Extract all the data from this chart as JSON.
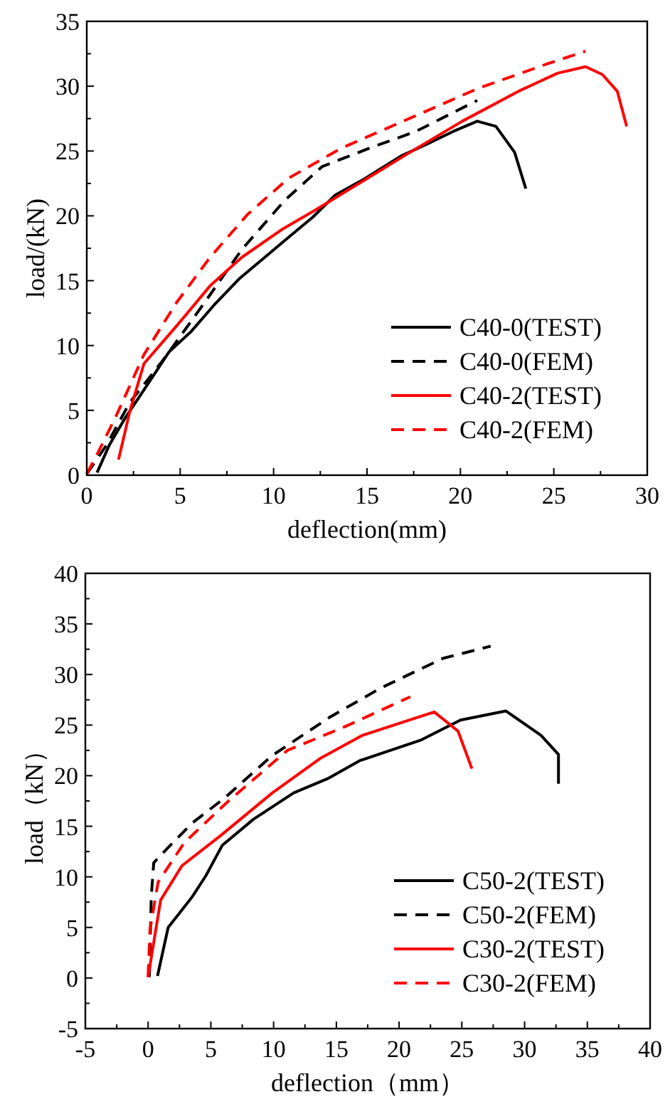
{
  "chart_data": [
    {
      "type": "line",
      "xlabel": "deflection(mm)",
      "ylabel": "load/(kN)",
      "xlim": [
        0,
        30
      ],
      "ylim": [
        0,
        35
      ],
      "xticks": [
        0,
        {
          "value": 2.5,
          "label": null
        },
        5,
        {
          "value": 7.5,
          "label": null
        },
        10,
        {
          "value": 12.5,
          "label": null
        },
        15,
        {
          "value": 17.5,
          "label": null
        },
        20,
        {
          "value": 22.5,
          "label": null
        },
        25,
        {
          "value": 27.5,
          "label": null
        },
        30
      ],
      "yticks": [
        0,
        {
          "value": 2.5,
          "label": null
        },
        5,
        {
          "value": 7.5,
          "label": null
        },
        10,
        {
          "value": 12.5,
          "label": null
        },
        15,
        {
          "value": 17.5,
          "label": null
        },
        20,
        {
          "value": 22.5,
          "label": null
        },
        25,
        {
          "value": 27.5,
          "label": null
        },
        30,
        {
          "value": 32.5,
          "label": null
        },
        35
      ],
      "legend": "bottom right",
      "grid": false,
      "series": [
        {
          "name": "C40-0(TEST)",
          "color": "#000000",
          "line_style": "solid",
          "x": [
            0.55,
            1.2,
            2.05,
            3.3,
            4.4,
            5.6,
            6.8,
            8.2,
            9.2,
            10.6,
            12.1,
            13.3,
            14.8,
            16.8,
            18.3,
            19.6,
            20.9,
            21.9,
            22.9,
            23.5
          ],
          "values": [
            0.2,
            2.3,
            4.4,
            7.1,
            9.5,
            11.1,
            13.1,
            15.2,
            16.4,
            18.1,
            19.9,
            21.6,
            22.8,
            24.6,
            25.6,
            26.5,
            27.3,
            26.9,
            24.9,
            22.1
          ]
        },
        {
          "name": "C40-0(FEM)",
          "color": "#000000",
          "line_style": "dashed",
          "x": [
            0,
            1.05,
            2.3,
            4.1,
            6.3,
            8.3,
            10.6,
            12.6,
            15.1,
            17.6,
            20.9
          ],
          "values": [
            0.1,
            2.3,
            5.6,
            8.9,
            13.3,
            17.4,
            21.2,
            23.8,
            25.2,
            26.5,
            28.9
          ]
        },
        {
          "name": "C40-2(TEST)",
          "color": "#ff0000",
          "line_style": "solid",
          "x": [
            1.7,
            2.3,
            3.06,
            4.8,
            6.6,
            8.3,
            10.5,
            12.3,
            14.8,
            17.3,
            20.1,
            23.1,
            25.2,
            26.7,
            27.6,
            28.4,
            28.9
          ],
          "values": [
            1.2,
            4.9,
            8.6,
            11.5,
            14.6,
            16.8,
            19.0,
            20.5,
            22.7,
            24.9,
            27.3,
            29.6,
            31.0,
            31.5,
            30.9,
            29.6,
            26.9
          ]
        },
        {
          "name": "C40-2(FEM)",
          "color": "#ff0000",
          "line_style": "dashed",
          "x": [
            0,
            0.55,
            1.55,
            3.06,
            4.8,
            6.6,
            8.6,
            10.8,
            13.6,
            17.1,
            20.9,
            24.6,
            26.7
          ],
          "values": [
            0.1,
            1.6,
            4.5,
            9.3,
            13.3,
            16.8,
            20.1,
            22.9,
            25.2,
            27.4,
            29.8,
            31.7,
            32.7
          ]
        }
      ]
    },
    {
      "type": "line",
      "xlabel": "deflection（mm）",
      "ylabel": "load（kN）",
      "xlim": [
        -5,
        40
      ],
      "ylim": [
        -5,
        40
      ],
      "xticks": [
        -5,
        {
          "value": -2.5,
          "label": null
        },
        0,
        {
          "value": 2.5,
          "label": null
        },
        5,
        {
          "value": 7.5,
          "label": null
        },
        10,
        {
          "value": 12.5,
          "label": null
        },
        15,
        {
          "value": 17.5,
          "label": null
        },
        20,
        {
          "value": 22.5,
          "label": null
        },
        25,
        {
          "value": 27.5,
          "label": null
        },
        30,
        {
          "value": 32.5,
          "label": null
        },
        35,
        {
          "value": 37.5,
          "label": null
        },
        40
      ],
      "yticks": [
        -5,
        {
          "value": -2.5,
          "label": null
        },
        0,
        {
          "value": 2.5,
          "label": null
        },
        5,
        {
          "value": 7.5,
          "label": null
        },
        10,
        {
          "value": 12.5,
          "label": null
        },
        15,
        {
          "value": 17.5,
          "label": null
        },
        20,
        {
          "value": 22.5,
          "label": null
        },
        25,
        {
          "value": 27.5,
          "label": null
        },
        30,
        {
          "value": 32.5,
          "label": null
        },
        35,
        {
          "value": 37.5,
          "label": null
        },
        40
      ],
      "legend": "bottom right",
      "grid": false,
      "series": [
        {
          "name": "C50-2(TEST)",
          "color": "#000000",
          "line_style": "solid",
          "x": [
            0.75,
            1.6,
            3.5,
            4.6,
            5.9,
            8.4,
            11.6,
            14.3,
            16.9,
            21.7,
            24.9,
            28.5,
            31.3,
            32.7,
            32.7
          ],
          "values": [
            0.2,
            5.0,
            8.0,
            10.1,
            13.1,
            15.7,
            18.3,
            19.7,
            21.5,
            23.5,
            25.5,
            26.4,
            24.0,
            22.1,
            19.2
          ]
        },
        {
          "name": "C50-2(FEM)",
          "color": "#000000",
          "line_style": "dashed",
          "x": [
            0.1,
            0.25,
            0.45,
            1.6,
            3.5,
            6.1,
            9.9,
            14.5,
            18.6,
            23.5,
            27.3
          ],
          "values": [
            0.1,
            8.0,
            11.4,
            12.9,
            15.3,
            17.8,
            22.0,
            25.8,
            28.7,
            31.6,
            32.8
          ]
        },
        {
          "name": "C30-2(TEST)",
          "color": "#ff0000",
          "line_style": "solid",
          "x": [
            0,
            1.0,
            2.7,
            5.8,
            9.9,
            13.7,
            17.1,
            22.8,
            24.7,
            25.8
          ],
          "values": [
            0.1,
            7.7,
            11.1,
            14.1,
            18.3,
            21.7,
            24.0,
            26.3,
            24.4,
            20.7
          ]
        },
        {
          "name": "C30-2(FEM)",
          "color": "#ff0000",
          "line_style": "dashed",
          "x": [
            0,
            0.15,
            0.8,
            2.9,
            6.5,
            11.1,
            15.6,
            20.9
          ],
          "values": [
            0.1,
            4.8,
            9.5,
            13.4,
            17.6,
            22.5,
            24.8,
            27.8
          ]
        }
      ]
    }
  ]
}
